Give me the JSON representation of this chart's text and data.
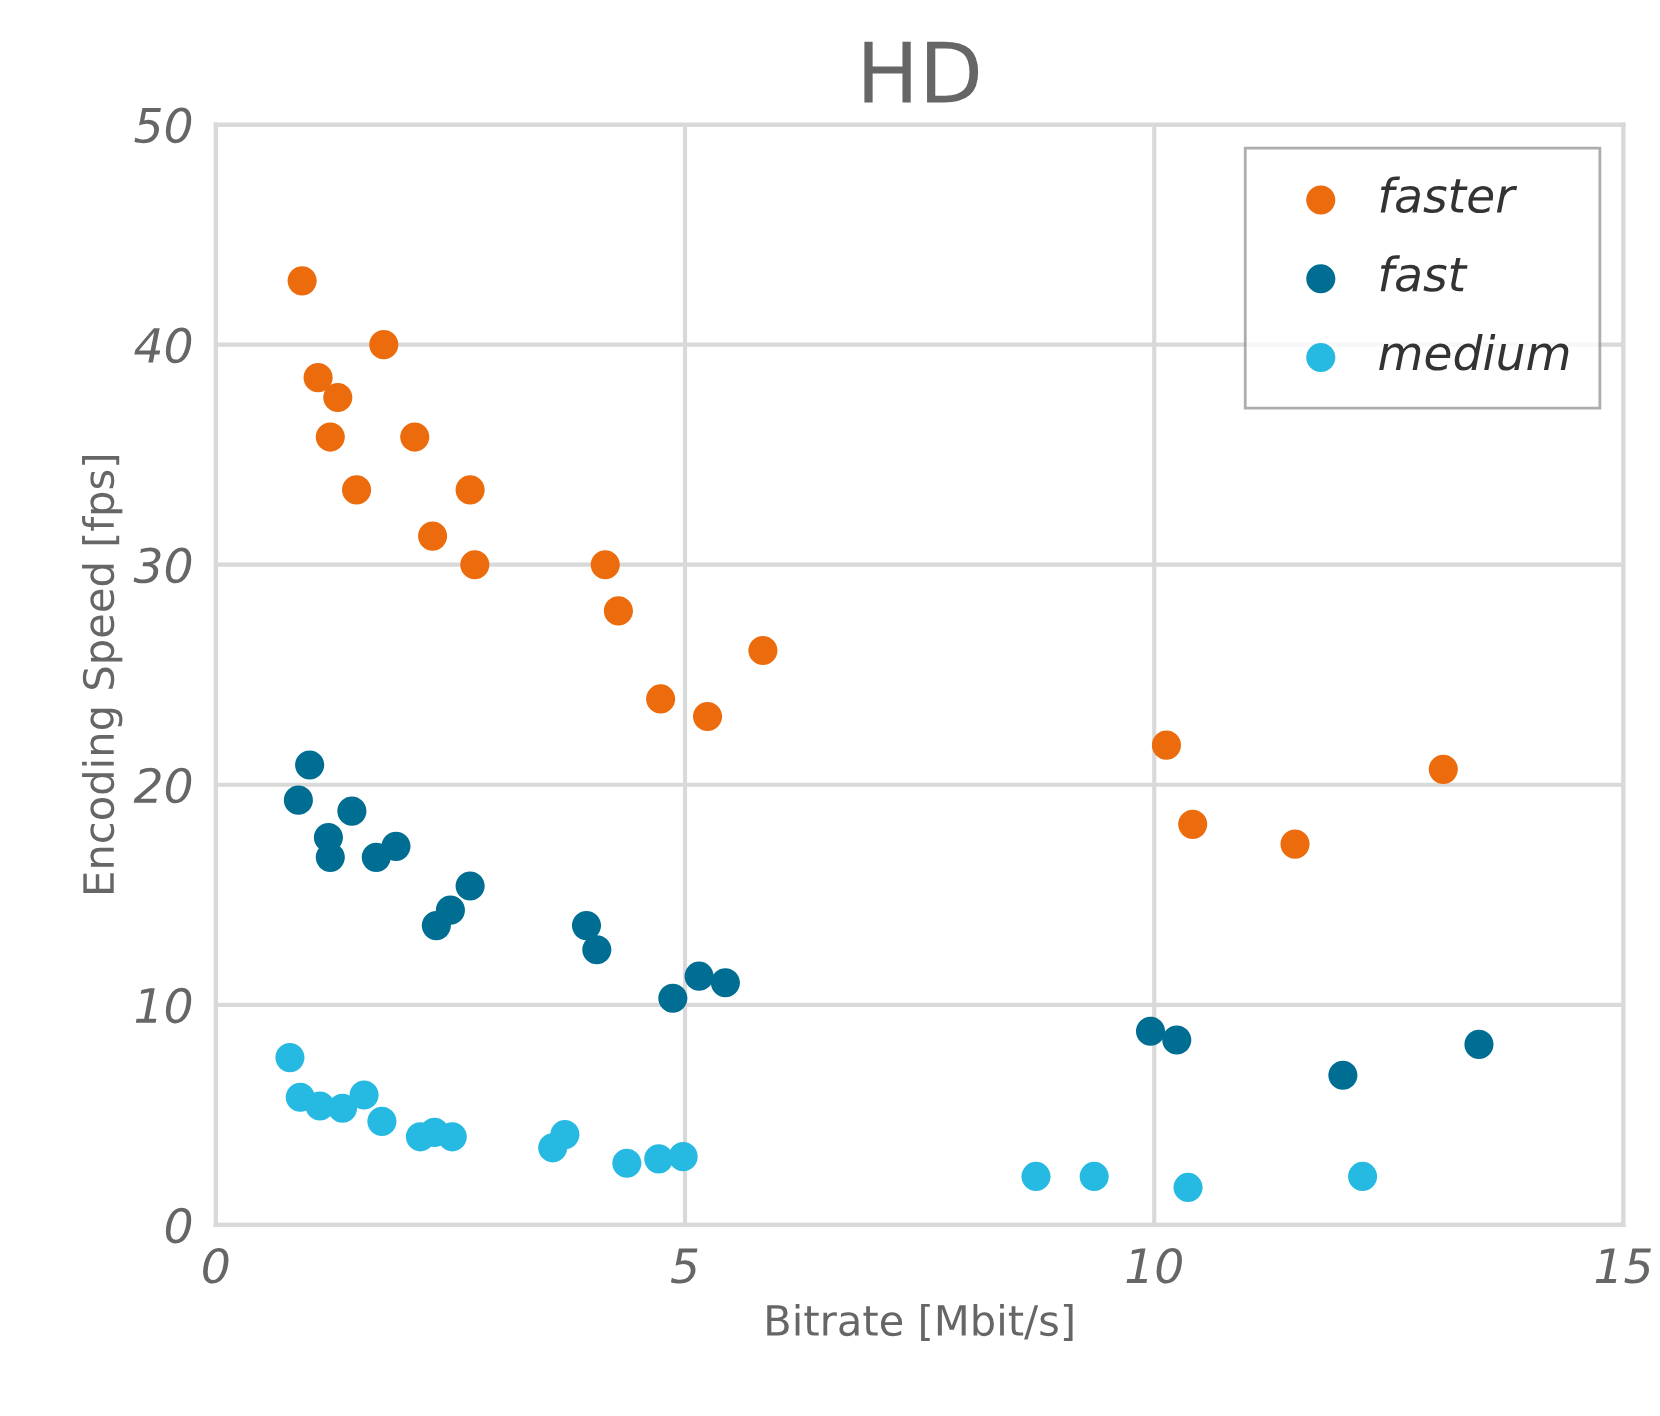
{
  "chart_data": {
    "type": "scatter",
    "title": "HD",
    "xlabel": "Bitrate [Mbit/s]",
    "ylabel": "Encoding Speed [fps]",
    "xlim": [
      0,
      15
    ],
    "xticks": [
      0,
      5,
      10,
      15
    ],
    "ylim": [
      0,
      50
    ],
    "yticks": [
      0,
      10,
      20,
      30,
      40,
      50
    ],
    "grid": true,
    "legend": "top right",
    "marker": "circle",
    "series": [
      {
        "name": "faster",
        "color": "#ec6b0c",
        "x": [
          0.92,
          1.79,
          1.09,
          1.3,
          1.22,
          2.12,
          1.5,
          2.71,
          2.31,
          2.76,
          4.15,
          4.29,
          4.74,
          5.24,
          5.83,
          10.13,
          10.41,
          11.5,
          13.08
        ],
        "values": [
          42.9,
          40.0,
          38.5,
          37.6,
          35.8,
          35.8,
          33.4,
          33.4,
          31.3,
          30.0,
          30.0,
          27.9,
          23.9,
          23.1,
          26.1,
          21.8,
          18.2,
          17.3,
          20.7
        ]
      },
      {
        "name": "fast",
        "color": "#006e92",
        "x": [
          1.0,
          0.88,
          1.45,
          1.2,
          1.22,
          1.92,
          1.71,
          2.71,
          2.5,
          2.35,
          3.95,
          4.06,
          4.87,
          5.15,
          5.43,
          9.96,
          10.24,
          12.01,
          13.46
        ],
        "values": [
          20.9,
          19.3,
          18.8,
          17.6,
          16.7,
          17.2,
          16.7,
          15.4,
          14.3,
          13.6,
          13.6,
          12.5,
          10.3,
          11.3,
          11.0,
          8.8,
          8.4,
          6.8,
          8.2
        ]
      },
      {
        "name": "medium",
        "color": "#26bae2",
        "x": [
          0.79,
          0.9,
          1.11,
          1.35,
          1.58,
          1.77,
          2.18,
          2.33,
          2.52,
          3.59,
          3.72,
          4.38,
          4.72,
          4.98,
          8.74,
          9.36,
          10.36,
          12.22
        ],
        "values": [
          7.6,
          5.8,
          5.4,
          5.3,
          5.9,
          4.7,
          4.0,
          4.2,
          4.0,
          3.5,
          4.1,
          2.8,
          3.0,
          3.1,
          2.2,
          2.2,
          1.7,
          2.2
        ]
      }
    ]
  }
}
